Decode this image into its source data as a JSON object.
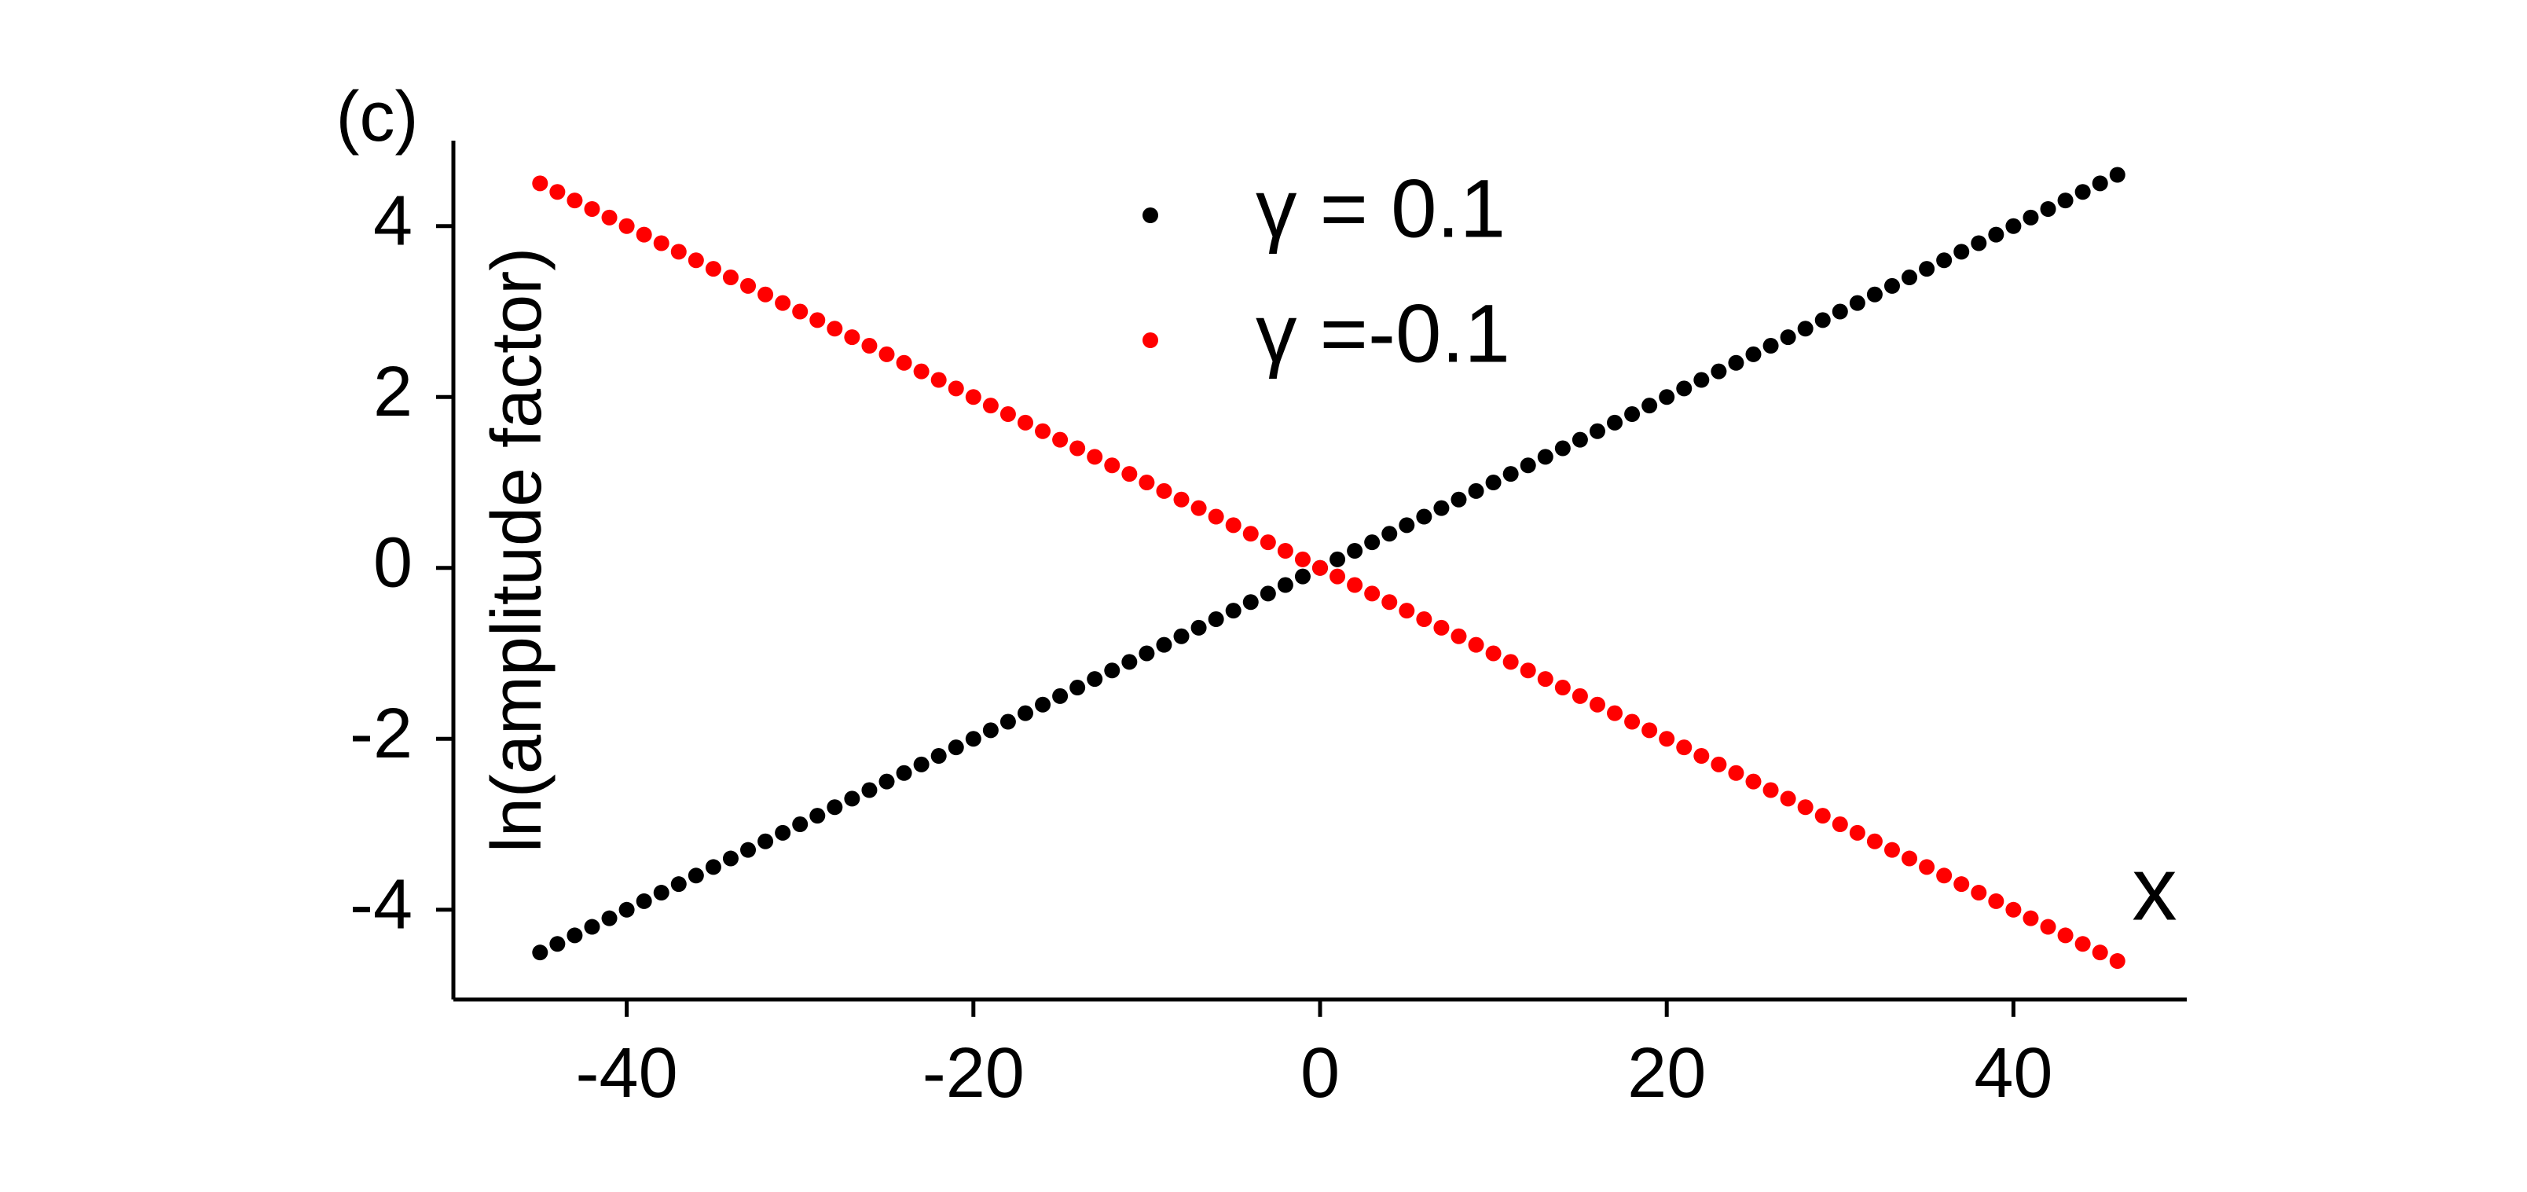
{
  "chart_data": {
    "type": "scatter",
    "panel_label": "(c)",
    "x_label": "x",
    "y_label": "ln(amplitude factor)",
    "x": [
      -45,
      -44,
      -43,
      -42,
      -41,
      -40,
      -39,
      -38,
      -37,
      -36,
      -35,
      -34,
      -33,
      -32,
      -31,
      -30,
      -29,
      -28,
      -27,
      -26,
      -25,
      -24,
      -23,
      -22,
      -21,
      -20,
      -19,
      -18,
      -17,
      -16,
      -15,
      -14,
      -13,
      -12,
      -11,
      -10,
      -9,
      -8,
      -7,
      -6,
      -5,
      -4,
      -3,
      -2,
      -1,
      0,
      1,
      2,
      3,
      4,
      5,
      6,
      7,
      8,
      9,
      10,
      11,
      12,
      13,
      14,
      15,
      16,
      17,
      18,
      19,
      20,
      21,
      22,
      23,
      24,
      25,
      26,
      27,
      28,
      29,
      30,
      31,
      32,
      33,
      34,
      35,
      36,
      37,
      38,
      39,
      40,
      41,
      42,
      43,
      44,
      45,
      46
    ],
    "series": [
      {
        "name": "γ = 0.1",
        "color": "#000000",
        "values": [
          -4.5,
          -4.4,
          -4.3,
          -4.2,
          -4.1,
          -4,
          -3.9,
          -3.8,
          -3.7,
          -3.6,
          -3.5,
          -3.4,
          -3.3,
          -3.2,
          -3.1,
          -3,
          -2.9,
          -2.8,
          -2.7,
          -2.6,
          -2.5,
          -2.4,
          -2.3,
          -2.2,
          -2.1,
          -2,
          -1.9,
          -1.8,
          -1.7,
          -1.6,
          -1.5,
          -1.4,
          -1.3,
          -1.2,
          -1.1,
          -1,
          -0.9,
          -0.8,
          -0.7,
          -0.6,
          -0.5,
          -0.4,
          -0.3,
          -0.2,
          -0.1,
          0,
          0.1,
          0.2,
          0.3,
          0.4,
          0.5,
          0.6,
          0.7,
          0.8,
          0.9,
          1,
          1.1,
          1.2,
          1.3,
          1.4,
          1.5,
          1.6,
          1.7,
          1.8,
          1.9,
          2,
          2.1,
          2.2,
          2.3,
          2.4,
          2.5,
          2.6,
          2.7,
          2.8,
          2.9,
          3,
          3.1,
          3.2,
          3.3,
          3.4,
          3.5,
          3.6,
          3.7,
          3.8,
          3.9,
          4,
          4.1,
          4.2,
          4.3,
          4.4,
          4.5,
          4.6
        ]
      },
      {
        "name": "γ =-0.1",
        "color": "#ff0000",
        "values": [
          4.5,
          4.4,
          4.3,
          4.2,
          4.1,
          4,
          3.9,
          3.8,
          3.7,
          3.6,
          3.5,
          3.4,
          3.3,
          3.2,
          3.1,
          3,
          2.9,
          2.8,
          2.7,
          2.6,
          2.5,
          2.4,
          2.3,
          2.2,
          2.1,
          2,
          1.9,
          1.8,
          1.7,
          1.6,
          1.5,
          1.4,
          1.3,
          1.2,
          1.1,
          1,
          0.9,
          0.8,
          0.7,
          0.6,
          0.5,
          0.4,
          0.3,
          0.2,
          0.1,
          0,
          -0.1,
          -0.2,
          -0.3,
          -0.4,
          -0.5,
          -0.6,
          -0.7,
          -0.8,
          -0.9,
          -1,
          -1.1,
          -1.2,
          -1.3,
          -1.4,
          -1.5,
          -1.6,
          -1.7,
          -1.8,
          -1.9,
          -2,
          -2.1,
          -2.2,
          -2.3,
          -2.4,
          -2.5,
          -2.6,
          -2.7,
          -2.8,
          -2.9,
          -3,
          -3.1,
          -3.2,
          -3.3,
          -3.4,
          -3.5,
          -3.6,
          -3.7,
          -3.8,
          -3.9,
          -4,
          -4.1,
          -4.2,
          -4.3,
          -4.4,
          -4.5,
          -4.6
        ]
      }
    ],
    "xlim": [
      -50,
      50
    ],
    "xticks": [
      -40,
      -20,
      0,
      20,
      40
    ],
    "ylim": [
      -5.05,
      5
    ],
    "yticks": [
      -4,
      -2,
      0,
      2,
      4
    ]
  }
}
